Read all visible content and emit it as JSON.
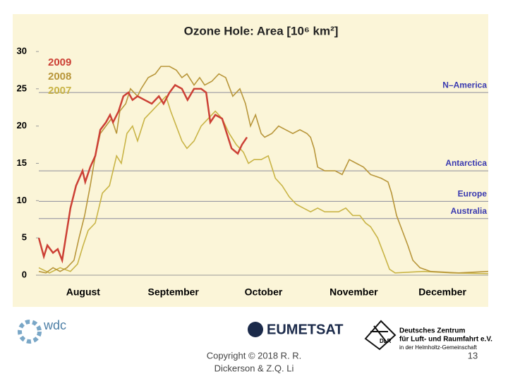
{
  "chart_data": {
    "type": "line",
    "title": "Ozone Hole: Area [10⁶ km²]",
    "xlim": [
      0,
      152
    ],
    "ylim": [
      0,
      30
    ],
    "yticks": [
      0,
      5,
      10,
      15,
      20,
      25,
      30
    ],
    "xticks": [
      {
        "value": 15,
        "label": "August"
      },
      {
        "value": 45.5,
        "label": "September"
      },
      {
        "value": 76,
        "label": "October"
      },
      {
        "value": 106.5,
        "label": "November"
      },
      {
        "value": 136.5,
        "label": "December"
      }
    ],
    "grid": false,
    "series": [
      {
        "name": "2009",
        "color": "#cc4035",
        "x": [
          0,
          1.7,
          2.9,
          4.8,
          6.4,
          7.9,
          9.1,
          10.7,
          12.6,
          14.8,
          15.7,
          17.4,
          19.1,
          20.8,
          22.7,
          24.1,
          25.1,
          27,
          28.6,
          30.3,
          31.7,
          33.4,
          35.8,
          38.2,
          40.6,
          42.2,
          44.2,
          46.1,
          48.4,
          50.3,
          52.5,
          54.9,
          56.6,
          58,
          59.7,
          62,
          63.2,
          65.2,
          67.3,
          68.7,
          70.4
        ],
        "values": [
          5,
          2.5,
          4,
          3,
          3.5,
          2,
          5,
          9,
          12,
          14,
          12.5,
          14.5,
          16,
          19.5,
          20.5,
          21.5,
          20.5,
          22,
          24,
          24.5,
          23.5,
          24,
          23.5,
          23,
          24,
          23,
          24.5,
          25.5,
          25,
          23.5,
          25,
          25,
          24.5,
          20.5,
          21.5,
          21,
          19.5,
          17,
          16.3,
          17.5,
          18.5
        ]
      },
      {
        "name": "2008",
        "color": "#b8963a",
        "x": [
          0,
          2.4,
          4.8,
          7.2,
          9.5,
          11.9,
          13.6,
          15.5,
          17.4,
          19.1,
          20.8,
          22.7,
          24.6,
          26.3,
          27.4,
          29.4,
          31,
          33.4,
          34.6,
          37,
          39.4,
          41.3,
          44.2,
          46.5,
          48.4,
          50.1,
          52.5,
          54.4,
          56.1,
          58.5,
          60.9,
          63.2,
          65.6,
          68,
          69.9,
          71.6,
          73.3,
          75.2,
          76.4,
          78.8,
          81.1,
          83.5,
          85.9,
          88.3,
          90.7,
          91.9,
          93.1,
          94.3,
          96.7,
          100.2,
          102.6,
          105,
          107.4,
          109.8,
          112.2,
          115.8,
          118.1,
          119.3,
          121,
          122.9,
          124.8,
          126.5,
          128.9,
          132.5,
          142,
          152
        ],
        "values": [
          0.5,
          0.3,
          1,
          0.5,
          1,
          2,
          5,
          8,
          12,
          16,
          19,
          20,
          21,
          19,
          22,
          23,
          25,
          24,
          25,
          26.5,
          27,
          28,
          28,
          27.5,
          26.5,
          27,
          25.5,
          26.5,
          25.5,
          26,
          27,
          26.5,
          24,
          25,
          23,
          20,
          21.5,
          19,
          18.5,
          19,
          20,
          19.5,
          19,
          19.5,
          19,
          18.5,
          17,
          14.5,
          14,
          14,
          13.5,
          15.5,
          15,
          14.5,
          13.5,
          13,
          12.5,
          11,
          8,
          6,
          4,
          2,
          1,
          0.5,
          0.3,
          0.5
        ]
      },
      {
        "name": "2007",
        "color": "#c9b446",
        "x": [
          0,
          3.6,
          7.2,
          10.7,
          13.1,
          15,
          16.7,
          19.1,
          21.5,
          23.9,
          26.3,
          27.9,
          29.8,
          31.7,
          33.4,
          35.8,
          38.2,
          40.6,
          43,
          44.6,
          46.5,
          48.4,
          50.1,
          52.5,
          54.9,
          57.3,
          59.7,
          62,
          64.4,
          66.8,
          69.2,
          70.9,
          72.8,
          75.2,
          77.6,
          80,
          82.3,
          84.7,
          87.1,
          89.5,
          91.9,
          94.3,
          96.7,
          99,
          101.4,
          103.8,
          106.2,
          108.6,
          110.5,
          112.2,
          114.6,
          117,
          118.6,
          120.5,
          130.1,
          139.6,
          152
        ],
        "values": [
          1,
          0.3,
          1,
          0.5,
          1.5,
          4,
          6,
          7,
          11,
          12,
          16,
          15,
          19,
          20,
          18,
          21,
          22,
          23,
          24,
          22,
          20,
          18,
          17,
          18,
          20,
          21,
          22,
          21,
          19,
          17.5,
          16.5,
          15,
          15.5,
          15.5,
          16,
          13,
          12,
          10.5,
          9.5,
          9,
          8.5,
          9,
          8.5,
          8.5,
          8.5,
          9,
          8,
          8,
          7,
          6.5,
          5,
          2.5,
          0.8,
          0.3,
          0.5,
          0.3,
          0.2
        ]
      }
    ],
    "reference_lines": [
      {
        "label": "N–America",
        "value": 24.5,
        "color": "#3a3ab0"
      },
      {
        "label": "Antarctica",
        "value": 14,
        "color": "#3a3ab0"
      },
      {
        "label": "Europe",
        "value": 9.9,
        "color": "#3a3ab0"
      },
      {
        "label": "Australia",
        "value": 7.6,
        "color": "#3a3ab0"
      }
    ]
  },
  "logos": {
    "wdc": "wdc",
    "eumetsat": "EUMETSAT",
    "dlr_name": "Deutsches Zentrum",
    "dlr_name2": "für Luft- und Raumfahrt e.V.",
    "dlr_short": "DLR",
    "dlr_sub": "in der Helmholtz-Gemeinschaft"
  },
  "footer": {
    "copyright": "Copyright © 2018 R. R.",
    "copyright2": "Dickerson & Z.Q. Li",
    "page": "13"
  }
}
